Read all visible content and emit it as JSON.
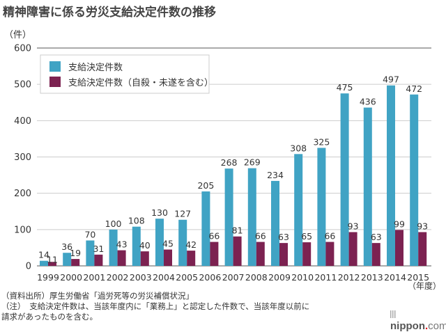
{
  "title": "精神障害に係る労災支給決定件数の推移",
  "chart_data": {
    "type": "bar",
    "title": "精神障害に係る労災支給決定件数の推移",
    "ylabel": "（件）",
    "xlabel": "（年度）",
    "ylim": [
      0,
      600
    ],
    "yticks": [
      0,
      100,
      200,
      300,
      400,
      500,
      600
    ],
    "grid": true,
    "legend_position": "top-left",
    "categories": [
      "1999",
      "2000",
      "2001",
      "2002",
      "2003",
      "2004",
      "2005",
      "2006",
      "2007",
      "2008",
      "2009",
      "2010",
      "2011",
      "2012",
      "2013",
      "2014",
      "2015"
    ],
    "series": [
      {
        "name": "支給決定件数",
        "color": "#40a3c4",
        "values": [
          14,
          36,
          70,
          100,
          108,
          130,
          127,
          205,
          268,
          269,
          234,
          308,
          325,
          475,
          436,
          497,
          472
        ]
      },
      {
        "name": "支給決定件数（自殺・未遂を含む）",
        "color": "#7c2251",
        "values": [
          11,
          19,
          31,
          43,
          40,
          45,
          42,
          66,
          81,
          66,
          63,
          65,
          66,
          93,
          63,
          99,
          93
        ]
      }
    ]
  },
  "notes": {
    "source": "（資料出所）厚生労働省「過労死等の労災補償状況」",
    "note_line1": "（注）　支給決定件数は、当該年度内に「業務上」と認定した件数で、当該年度以前に",
    "note_line2": "請求があったものを含む。"
  },
  "logo": {
    "name": "nippon",
    "dot": ".",
    "tld": "com"
  }
}
